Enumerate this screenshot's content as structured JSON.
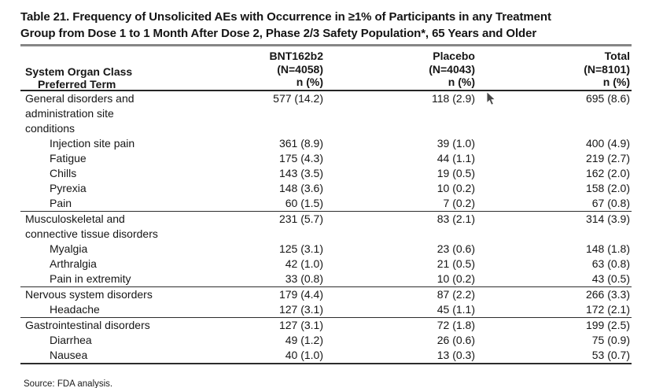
{
  "title": {
    "line1": "Table 21. Frequency of Unsolicited AEs with Occurrence in ≥1% of Participants in any Treatment",
    "line2": "Group from Dose 1 to 1 Month After Dose 2, Phase 2/3 Safety Population*, 65 Years and Older"
  },
  "table": {
    "header": {
      "col1_line1": "System Organ Class",
      "col1_line2": "Preferred Term",
      "columns": [
        {
          "name": "BNT162b2",
          "n": "(N=4058)",
          "unit": "n (%)"
        },
        {
          "name": "Placebo",
          "n": "(N=4043)",
          "unit": "n (%)"
        },
        {
          "name": "Total",
          "n": "(N=8101)",
          "unit": "n (%)"
        }
      ]
    },
    "sections": [
      {
        "soc": "General disorders and administration site conditions",
        "values": [
          "577 (14.2)",
          "118 (2.9)",
          "695 (8.6)"
        ],
        "terms": [
          {
            "term": "Injection site pain",
            "values": [
              "361 (8.9)",
              "39 (1.0)",
              "400 (4.9)"
            ]
          },
          {
            "term": "Fatigue",
            "values": [
              "175 (4.3)",
              "44 (1.1)",
              "219 (2.7)"
            ]
          },
          {
            "term": "Chills",
            "values": [
              "143 (3.5)",
              "19 (0.5)",
              "162 (2.0)"
            ]
          },
          {
            "term": "Pyrexia",
            "values": [
              "148 (3.6)",
              "10 (0.2)",
              "158 (2.0)"
            ]
          },
          {
            "term": "Pain",
            "values": [
              "60 (1.5)",
              "7 (0.2)",
              "67 (0.8)"
            ]
          }
        ]
      },
      {
        "soc": "Musculoskeletal and connective tissue disorders",
        "values": [
          "231 (5.7)",
          "83 (2.1)",
          "314 (3.9)"
        ],
        "terms": [
          {
            "term": "Myalgia",
            "values": [
              "125 (3.1)",
              "23 (0.6)",
              "148 (1.8)"
            ]
          },
          {
            "term": "Arthralgia",
            "values": [
              "42 (1.0)",
              "21 (0.5)",
              "63 (0.8)"
            ]
          },
          {
            "term": "Pain in extremity",
            "values": [
              "33 (0.8)",
              "10 (0.2)",
              "43 (0.5)"
            ]
          }
        ]
      },
      {
        "soc": "Nervous system disorders",
        "values": [
          "179 (4.4)",
          "87 (2.2)",
          "266 (3.3)"
        ],
        "terms": [
          {
            "term": "Headache",
            "values": [
              "127 (3.1)",
              "45 (1.1)",
              "172 (2.1)"
            ]
          }
        ]
      },
      {
        "soc": "Gastrointestinal disorders",
        "values": [
          "127 (3.1)",
          "72 (1.8)",
          "199 (2.5)"
        ],
        "terms": [
          {
            "term": "Diarrhea",
            "values": [
              "49 (1.2)",
              "26 (0.6)",
              "75 (0.9)"
            ]
          },
          {
            "term": "Nausea",
            "values": [
              "40 (1.0)",
              "13 (0.3)",
              "53 (0.7)"
            ]
          }
        ]
      }
    ],
    "source": "Source: FDA analysis."
  }
}
